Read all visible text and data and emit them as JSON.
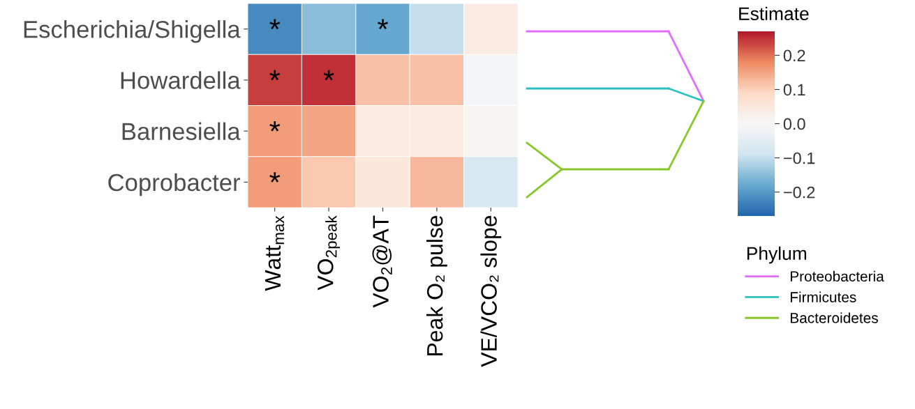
{
  "chart_data": {
    "type": "heatmap",
    "categories": [
      "Watt$_{max}$",
      "VO$_{2peak}$",
      "VO$_{2}$@AT",
      "Peak O₂ pulse",
      "VE/VCO₂ slope"
    ],
    "y_categories": [
      "Escherichia/Shigella",
      "Howardella",
      "Barnesiella",
      "Coprobacter"
    ],
    "cells": [
      [
        -0.22,
        -0.15,
        -0.18,
        -0.1,
        0.04
      ],
      [
        0.24,
        0.25,
        0.12,
        0.12,
        -0.01
      ],
      [
        0.16,
        0.15,
        0.04,
        0.04,
        0.01
      ],
      [
        0.16,
        0.11,
        0.05,
        0.13,
        -0.07
      ]
    ],
    "cell_labels": [
      [
        "*",
        null,
        "*",
        null,
        null
      ],
      [
        "*",
        "*",
        null,
        null,
        null
      ],
      [
        "*",
        null,
        null,
        null,
        null
      ],
      [
        "*",
        null,
        null,
        null,
        null
      ]
    ],
    "clim": [
      -0.27,
      0.27
    ],
    "cticks": [
      {
        "value": -0.2,
        "label": "−0.2"
      },
      {
        "value": -0.1,
        "label": "−0.1"
      },
      {
        "value": 0.0,
        "label": "0.0"
      },
      {
        "value": 0.1,
        "label": "0.1"
      },
      {
        "value": 0.2,
        "label": "0.2"
      }
    ],
    "clabel": "Estimate",
    "legend_title": "Phylum",
    "annotations": [
      "Proteobacteria",
      "Firmicutes",
      "Bacteroidetes"
    ]
  }
}
